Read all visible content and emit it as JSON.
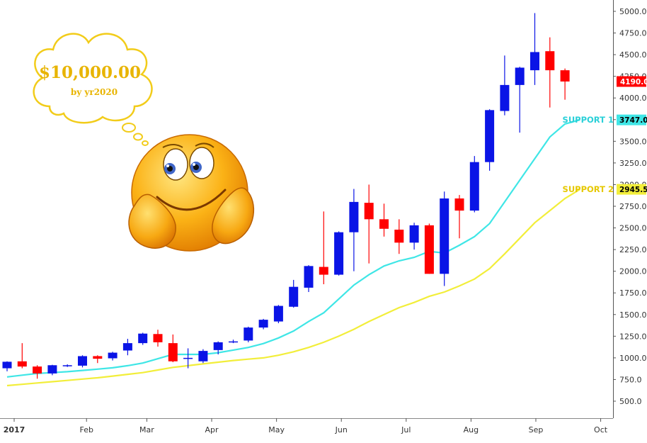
{
  "chart_data": {
    "type": "candlestick",
    "interval": "weekly",
    "y_ticks": [
      "500.0",
      "750.0",
      "1000.0",
      "1250.0",
      "1500.0",
      "1750.0",
      "2000.0",
      "2250.0",
      "2500.0",
      "2750.0",
      "3000.0",
      "3250.0",
      "3500.0",
      "3750.0",
      "4000.0",
      "4250.0",
      "4500.0",
      "4750.0",
      "5000.0"
    ],
    "x_ticks": [
      {
        "label": "2017",
        "bold": true,
        "week": 1.0
      },
      {
        "label": "Feb",
        "bold": false,
        "week": 5.8
      },
      {
        "label": "Mar",
        "bold": false,
        "week": 9.8
      },
      {
        "label": "Apr",
        "bold": false,
        "week": 14.1
      },
      {
        "label": "May",
        "bold": false,
        "week": 18.4
      },
      {
        "label": "Jun",
        "bold": false,
        "week": 22.7
      },
      {
        "label": "Jul",
        "bold": false,
        "week": 27.0
      },
      {
        "label": "Aug",
        "bold": false,
        "week": 31.3
      },
      {
        "label": "Sep",
        "bold": false,
        "week": 35.6
      },
      {
        "label": "Oct",
        "bold": false,
        "week": 39.9
      }
    ],
    "colors": {
      "up": "#0a14e6",
      "down": "#ff0000",
      "support1": "#3fe6e6",
      "support2": "#f2ee3a"
    },
    "candles": [
      {
        "o": 880,
        "h": 960,
        "l": 845,
        "c": 955
      },
      {
        "o": 960,
        "h": 1170,
        "l": 880,
        "c": 900
      },
      {
        "o": 900,
        "h": 915,
        "l": 760,
        "c": 820
      },
      {
        "o": 820,
        "h": 920,
        "l": 800,
        "c": 915
      },
      {
        "o": 905,
        "h": 925,
        "l": 895,
        "c": 915
      },
      {
        "o": 910,
        "h": 1030,
        "l": 890,
        "c": 1020
      },
      {
        "o": 1020,
        "h": 1030,
        "l": 940,
        "c": 990
      },
      {
        "o": 995,
        "h": 1070,
        "l": 970,
        "c": 1060
      },
      {
        "o": 1085,
        "h": 1220,
        "l": 1030,
        "c": 1170
      },
      {
        "o": 1170,
        "h": 1290,
        "l": 1150,
        "c": 1280
      },
      {
        "o": 1275,
        "h": 1325,
        "l": 1130,
        "c": 1180
      },
      {
        "o": 1170,
        "h": 1270,
        "l": 950,
        "c": 960
      },
      {
        "o": 1000,
        "h": 1110,
        "l": 880,
        "c": 1000
      },
      {
        "o": 960,
        "h": 1100,
        "l": 940,
        "c": 1080
      },
      {
        "o": 1090,
        "h": 1190,
        "l": 1040,
        "c": 1180
      },
      {
        "o": 1180,
        "h": 1210,
        "l": 1170,
        "c": 1190
      },
      {
        "o": 1200,
        "h": 1360,
        "l": 1180,
        "c": 1350
      },
      {
        "o": 1350,
        "h": 1450,
        "l": 1330,
        "c": 1440
      },
      {
        "o": 1420,
        "h": 1610,
        "l": 1400,
        "c": 1600
      },
      {
        "o": 1590,
        "h": 1900,
        "l": 1580,
        "c": 1820
      },
      {
        "o": 1810,
        "h": 2070,
        "l": 1760,
        "c": 2060
      },
      {
        "o": 2050,
        "h": 2690,
        "l": 1850,
        "c": 1960
      },
      {
        "o": 1960,
        "h": 2460,
        "l": 1950,
        "c": 2450
      },
      {
        "o": 2450,
        "h": 2950,
        "l": 2000,
        "c": 2800
      },
      {
        "o": 2790,
        "h": 3000,
        "l": 2090,
        "c": 2600
      },
      {
        "o": 2600,
        "h": 2780,
        "l": 2400,
        "c": 2490
      },
      {
        "o": 2480,
        "h": 2600,
        "l": 2200,
        "c": 2330
      },
      {
        "o": 2330,
        "h": 2560,
        "l": 2250,
        "c": 2530
      },
      {
        "o": 2530,
        "h": 2550,
        "l": 1970,
        "c": 1970
      },
      {
        "o": 1970,
        "h": 2920,
        "l": 1830,
        "c": 2840
      },
      {
        "o": 2840,
        "h": 2880,
        "l": 2380,
        "c": 2700
      },
      {
        "o": 2700,
        "h": 3330,
        "l": 2680,
        "c": 3260
      },
      {
        "o": 3260,
        "h": 3870,
        "l": 3160,
        "c": 3860
      },
      {
        "o": 3850,
        "h": 4490,
        "l": 3800,
        "c": 4150
      },
      {
        "o": 4150,
        "h": 4360,
        "l": 3600,
        "c": 4350
      },
      {
        "o": 4320,
        "h": 4980,
        "l": 4150,
        "c": 4530
      },
      {
        "o": 4540,
        "h": 4700,
        "l": 3890,
        "c": 4320
      },
      {
        "o": 4320,
        "h": 4340,
        "l": 3980,
        "c": 4190
      }
    ],
    "support1_line": [
      780,
      800,
      820,
      830,
      840,
      855,
      870,
      885,
      910,
      940,
      990,
      1040,
      1040,
      1040,
      1060,
      1090,
      1120,
      1165,
      1230,
      1310,
      1420,
      1520,
      1680,
      1840,
      1960,
      2060,
      2120,
      2160,
      2230,
      2210,
      2300,
      2400,
      2550,
      2800,
      3050,
      3300,
      3550,
      3700,
      3747
    ],
    "support2_line": [
      680,
      695,
      710,
      725,
      740,
      755,
      770,
      790,
      810,
      830,
      860,
      890,
      910,
      930,
      950,
      970,
      985,
      1000,
      1030,
      1070,
      1120,
      1180,
      1250,
      1330,
      1420,
      1500,
      1580,
      1640,
      1710,
      1760,
      1830,
      1910,
      2030,
      2200,
      2380,
      2560,
      2700,
      2840,
      2945.5
    ],
    "support1": {
      "label": "SUPPORT 1",
      "value": "3747.0"
    },
    "support2": {
      "label": "SUPPORT 2",
      "value": "2945.5"
    },
    "last_price": {
      "value": "4190.0"
    },
    "ylim": [
      200,
      5100
    ]
  },
  "annotation": {
    "bubble_title": "$10,000.00",
    "bubble_subtitle": "by yr2020"
  }
}
